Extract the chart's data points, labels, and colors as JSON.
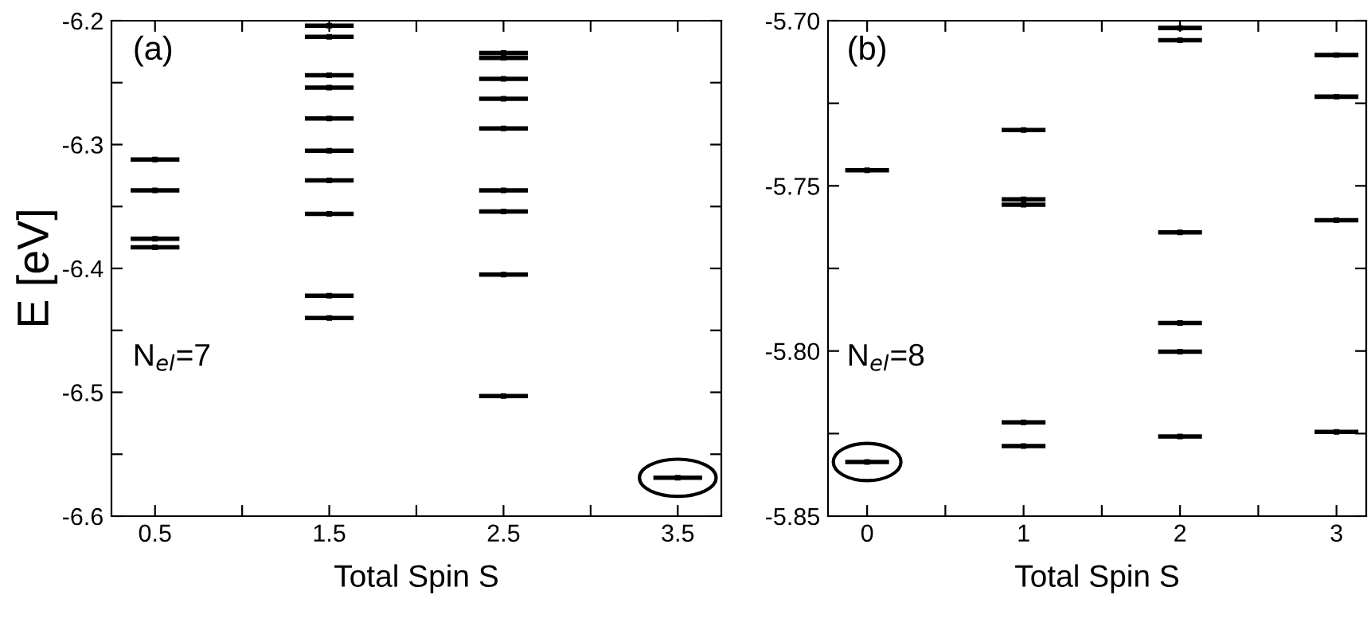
{
  "chart_data": [
    {
      "type": "scatter",
      "ylabel": "E [eV]",
      "xlabel": "Total Spin S",
      "color": "#000000",
      "annotations": [
        "(a)",
        "N$_{el}$=7"
      ],
      "xerrors": [
        0.14,
        0.14,
        0.14,
        0.14,
        0.14,
        0.14,
        0.14,
        0.14,
        0.14,
        0.14,
        0.14,
        0.14,
        0.14,
        0.14,
        0.14,
        0.14,
        0.14,
        0.14,
        0.14,
        0.14,
        0.14,
        0.14,
        0.14,
        0.14
      ],
      "x": [
        0.5,
        0.5,
        0.5,
        0.5,
        1.5,
        1.5,
        1.5,
        1.5,
        1.5,
        1.5,
        1.5,
        1.5,
        1.5,
        1.5,
        2.5,
        2.5,
        2.5,
        2.5,
        2.5,
        2.5,
        2.5,
        2.5,
        2.5,
        3.5
      ],
      "values": [
        -6.312,
        -6.337,
        -6.376,
        -6.383,
        -6.204,
        -6.213,
        -6.244,
        -6.254,
        -6.279,
        -6.305,
        -6.329,
        -6.356,
        -6.422,
        -6.44,
        -6.226,
        -6.23,
        -6.247,
        -6.263,
        -6.287,
        -6.337,
        -6.354,
        -6.405,
        -6.503,
        -6.569
      ],
      "xlim": [
        0.25,
        3.75
      ],
      "ylim": [
        -6.6,
        -6.2
      ],
      "xticks": [
        0.5,
        {
          "value": 1,
          "label": null
        },
        1.5,
        {
          "value": 2,
          "label": null
        },
        2.5,
        {
          "value": 3,
          "label": null
        },
        3.5
      ],
      "yticks": [
        -6.6,
        {
          "value": -6.55,
          "label": null
        },
        -6.5,
        {
          "value": -6.45,
          "label": null
        },
        -6.4,
        {
          "value": -6.35,
          "label": null
        },
        -6.3,
        {
          "value": -6.25,
          "label": null
        },
        -6.2
      ],
      "grid": false,
      "legend": false
    },
    {
      "type": "scatter",
      "xlabel": "Total Spin S",
      "color": "#000000",
      "annotations": [
        "(b)",
        "N$_{el}$=8"
      ],
      "xerrors": [
        0.14,
        0.14,
        0.14,
        0.14,
        0.14,
        0.14,
        0.14,
        0.14,
        0.14,
        0.14,
        0.14,
        0.14,
        0.14,
        0.14,
        0.14,
        0.14,
        0.14
      ],
      "x": [
        0,
        0,
        1,
        1,
        1,
        1,
        1,
        2,
        2,
        2,
        2,
        2,
        2,
        3,
        3,
        3,
        3
      ],
      "values": [
        -5.7453,
        -5.8336,
        -5.7331,
        -5.7541,
        -5.7557,
        -5.8216,
        -5.8288,
        -5.7022,
        -5.7059,
        -5.7641,
        -5.7915,
        -5.8002,
        -5.8259,
        -5.7104,
        -5.723,
        -5.7604,
        -5.8245
      ],
      "xlim": [
        -0.25,
        3.19
      ],
      "ylim": [
        -5.85,
        -5.7
      ],
      "xticks": [
        0,
        {
          "value": 0.5,
          "label": null
        },
        1,
        {
          "value": 1.5,
          "label": null
        },
        2,
        {
          "value": 2.5,
          "label": null
        },
        3
      ],
      "yticks": [
        {
          "value": -5.85,
          "label": "-5.85"
        },
        {
          "value": -5.825,
          "label": null
        },
        {
          "value": -5.8,
          "label": "-5.80"
        },
        {
          "value": -5.775,
          "label": null
        },
        -5.75,
        {
          "value": -5.725,
          "label": null
        },
        {
          "value": -5.7,
          "label": "-5.70"
        }
      ],
      "grid": false,
      "legend": false
    }
  ]
}
